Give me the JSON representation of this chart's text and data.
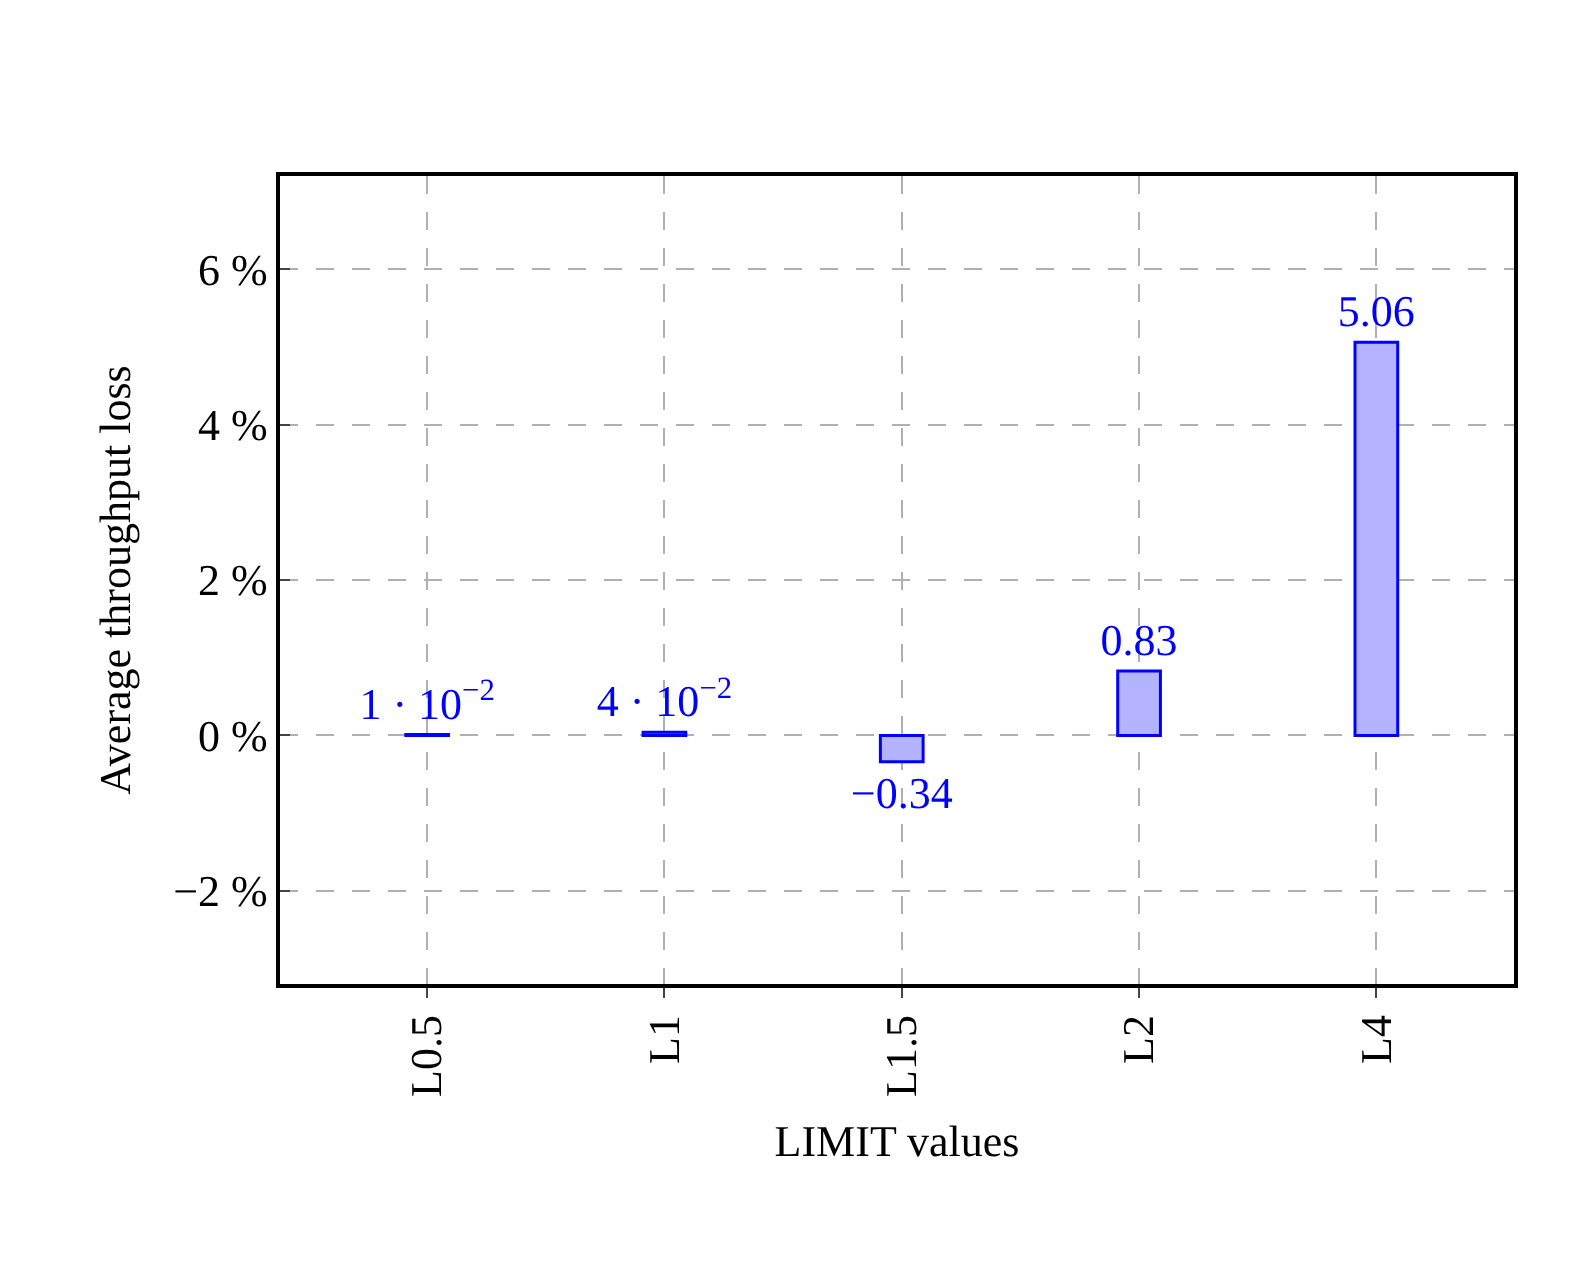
{
  "chart_data": {
    "type": "bar",
    "xlabel": "LIMIT values",
    "ylabel": "Average throughput loss",
    "categories": [
      "L0.5",
      "L1",
      "L1.5",
      "L2",
      "L4"
    ],
    "values": [
      0.01,
      0.04,
      -0.34,
      0.83,
      5.06
    ],
    "value_labels": [
      "1 · 10$^{−2}$",
      "4 · 10$^{−2}$",
      "−0.34",
      "0.83",
      "5.06"
    ],
    "color": "#b3b3ff",
    "ylim": [
      -3.2,
      7.2
    ],
    "yticks": [
      {
        "value": -2,
        "label": "−2 %"
      },
      {
        "value": 0,
        "label": "0 %"
      },
      {
        "value": 2,
        "label": "2 %"
      },
      {
        "value": 4,
        "label": "4 %"
      },
      {
        "value": 6,
        "label": "6 %"
      }
    ],
    "grid": true
  }
}
